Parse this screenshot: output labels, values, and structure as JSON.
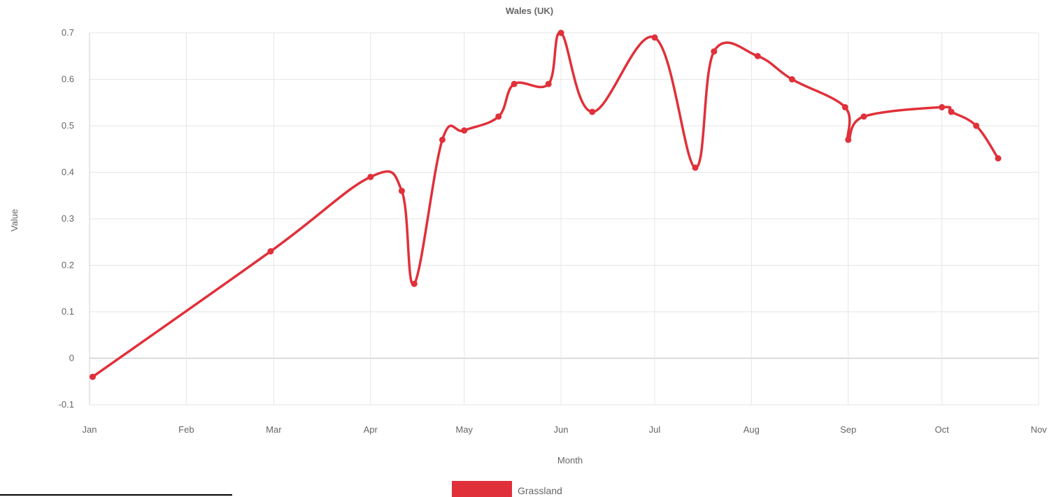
{
  "chart_data": {
    "type": "line",
    "title": "Wales (UK)",
    "xlabel": "Month",
    "ylabel": "Value",
    "ylim": [
      -0.1,
      0.7
    ],
    "yticks": [
      "-0.1",
      "0",
      "0.1",
      "0.2",
      "0.3",
      "0.4",
      "0.5",
      "0.6",
      "0.7"
    ],
    "xticks": [
      "Jan",
      "Feb",
      "Mar",
      "Apr",
      "May",
      "Jun",
      "Jul",
      "Aug",
      "Sep",
      "Oct",
      "Nov"
    ],
    "grid": true,
    "legend_position": "bottom",
    "series": [
      {
        "name": "Grassland",
        "color": "#e0303a",
        "x": [
          "Jan 2",
          "Feb 28",
          "Apr 1",
          "Apr 11",
          "Apr 15",
          "Apr 24",
          "May 1",
          "May 12",
          "May 17",
          "May 28",
          "Jun 1",
          "Jun 11",
          "Jul 1",
          "Jul 14",
          "Jul 20",
          "Aug 3",
          "Aug 14",
          "Aug 31",
          "Sep 1",
          "Sep 6",
          "Oct 1",
          "Oct 4",
          "Oct 12",
          "Oct 19"
        ],
        "values": [
          -0.04,
          0.23,
          0.39,
          0.36,
          0.16,
          0.47,
          0.49,
          0.52,
          0.59,
          0.59,
          0.7,
          0.53,
          0.69,
          0.41,
          0.66,
          0.65,
          0.6,
          0.54,
          0.47,
          0.52,
          0.54,
          0.53,
          0.5,
          0.43
        ]
      }
    ]
  }
}
